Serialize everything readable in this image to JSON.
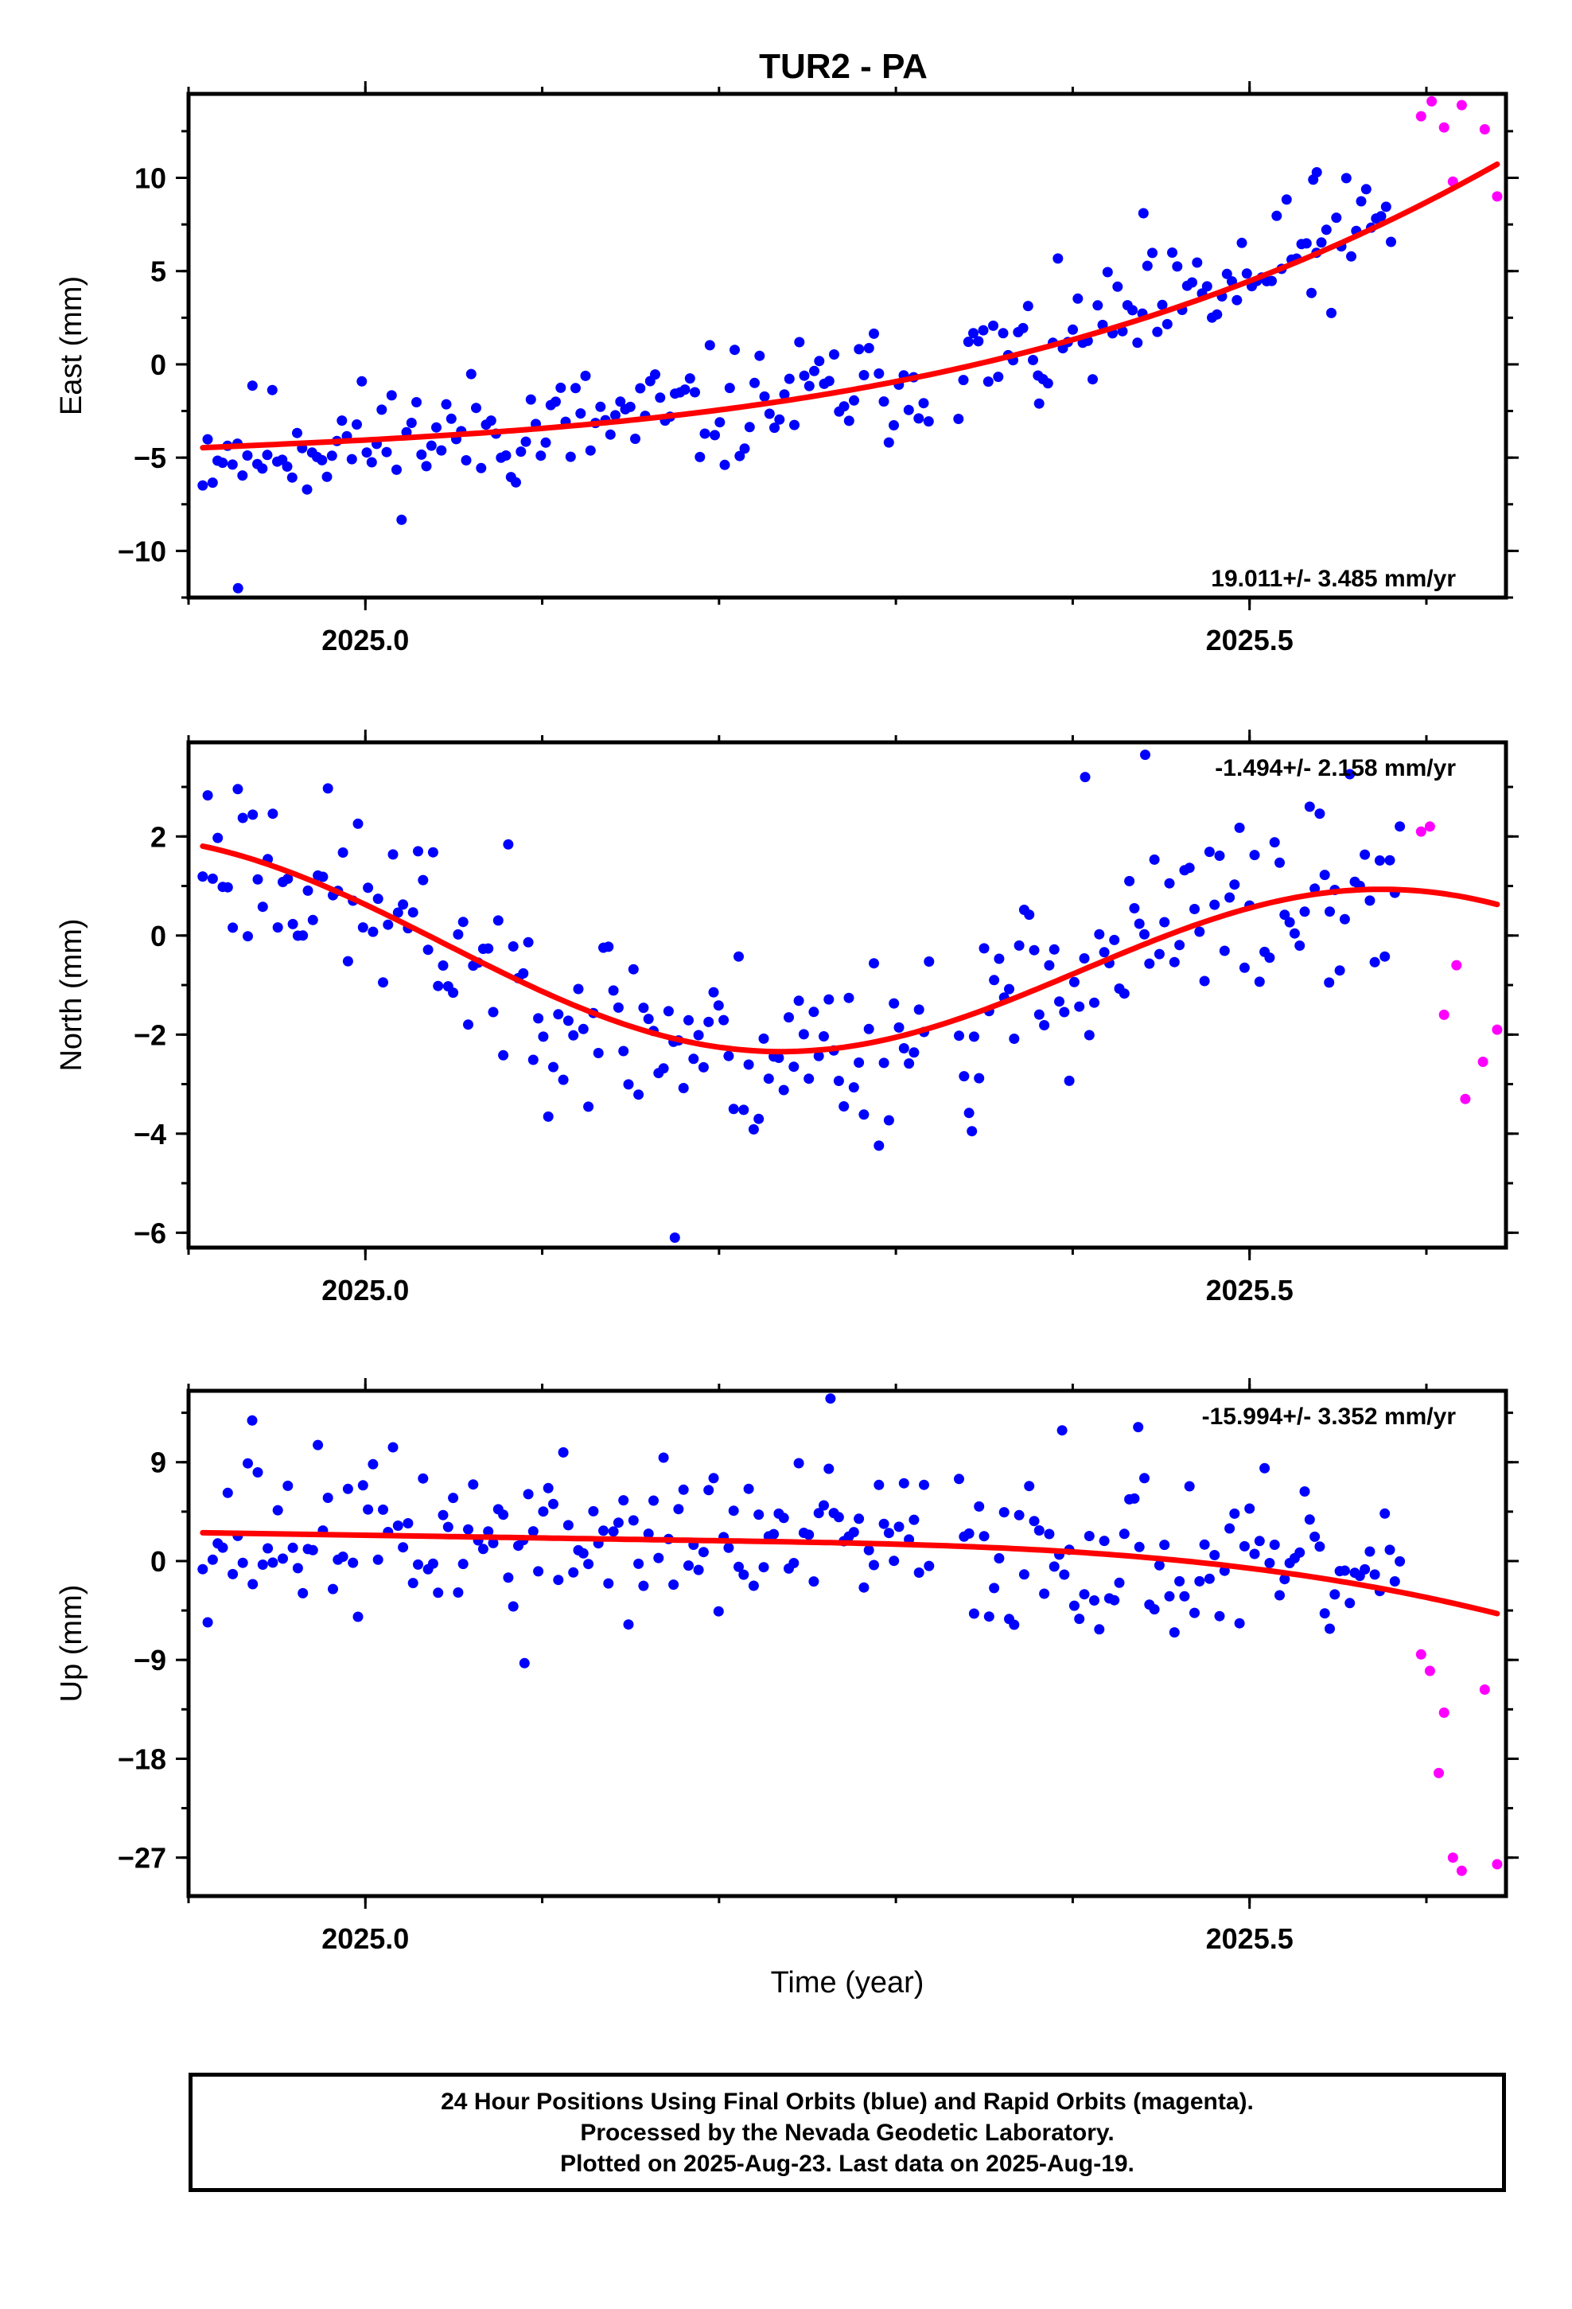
{
  "colors": {
    "final": "#0000ff",
    "rapid": "#ff00ff",
    "fit": "#ff0000",
    "axis": "#000000"
  },
  "chart_data": {
    "type": "scatter",
    "title": "TUR2 - PA",
    "xlabel": "Time (year)",
    "xlim": [
      2024.9,
      2025.645
    ],
    "xticks": [
      2025.0,
      2025.5
    ],
    "xtick_labels": [
      "2025.0",
      "2025.5"
    ],
    "x_minor_step": 0.1,
    "series_legend": [
      {
        "name": "Final Orbits",
        "color": "blue"
      },
      {
        "name": "Rapid Orbits",
        "color": "magenta"
      },
      {
        "name": "fit",
        "color": "red"
      }
    ],
    "panels": [
      {
        "id": "east",
        "ylabel": "East (mm)",
        "ylim": [
          -12.5,
          14.5
        ],
        "yticks": [
          -10,
          -5,
          0,
          5,
          10
        ],
        "ytick_labels": [
          "−10",
          "−5",
          "0",
          "5",
          "10"
        ],
        "y_minor_step": 2.5,
        "rate": "19.011+/- 3.485 mm/yr",
        "rate_position": "bottom-right",
        "fit": {
          "type": "cubic",
          "y0": -4.5,
          "slope": 4.15,
          "c2": 0,
          "c3": 30,
          "cut": 0
        },
        "final": {
          "t0": 2024.908,
          "t1": 2025.58,
          "n": 240,
          "amp": 1.6,
          "seed": 11
        },
        "final_extra": [
          [
            2024.928,
            -12
          ],
          [
            2025.381,
            -2.1
          ],
          [
            2025.44,
            8.1
          ],
          [
            2025.536,
            9.9
          ],
          [
            2025.538,
            10.3
          ]
        ],
        "rapid": [
          [
            2025.597,
            13.3
          ],
          [
            2025.603,
            14.1
          ],
          [
            2025.61,
            12.7
          ],
          [
            2025.615,
            9.8
          ],
          [
            2025.62,
            13.9
          ],
          [
            2025.633,
            12.6
          ],
          [
            2025.64,
            9.0
          ]
        ]
      },
      {
        "id": "north",
        "ylabel": "North (mm)",
        "ylim": [
          -6.3,
          3.9
        ],
        "yticks": [
          -6,
          -4,
          -2,
          0,
          2
        ],
        "ytick_labels": [
          "−6",
          "−4",
          "−2",
          "0",
          "2"
        ],
        "y_minor_step": 1,
        "rate": "-1.494+/- 2.158 mm/yr",
        "rate_position": "top-right",
        "fit": {
          "type": "sine",
          "base": -0.1,
          "trend": -1.494,
          "amp": 1.9,
          "period": 0.72,
          "phase": 2.75,
          "ref": 2025.0
        },
        "final": {
          "t0": 2024.908,
          "t1": 2025.585,
          "n": 240,
          "amp": 0.95,
          "seed": 23
        },
        "final_extra": [
          [
            2025.175,
            -6.1
          ],
          [
            2025.343,
            -3.95
          ],
          [
            2025.407,
            3.2
          ],
          [
            2025.441,
            3.65
          ],
          [
            2025.545,
            -0.95
          ]
        ],
        "rapid": [
          [
            2025.597,
            2.1
          ],
          [
            2025.602,
            2.2
          ],
          [
            2025.61,
            -1.6
          ],
          [
            2025.617,
            -0.6
          ],
          [
            2025.622,
            -3.3
          ],
          [
            2025.632,
            -2.55
          ],
          [
            2025.64,
            -1.9
          ]
        ]
      },
      {
        "id": "up",
        "ylabel": "Up (mm)",
        "ylim": [
          -30.5,
          15.5
        ],
        "yticks": [
          -27,
          -18,
          -9,
          0,
          9
        ],
        "ytick_labels": [
          "−27",
          "−18",
          "−9",
          "0",
          "9"
        ],
        "y_minor_step": 4.5,
        "rate": "-15.994+/- 3.352 mm/yr",
        "rate_position": "top-right",
        "fit": {
          "type": "cubic",
          "y0": 2.6,
          "slope": -2.5,
          "c2": 0,
          "c3": -65,
          "cut": 0.3
        },
        "final": {
          "t0": 2024.908,
          "t1": 2025.585,
          "n": 240,
          "amp": 3.6,
          "seed": 37
        },
        "final_extra": [
          [
            2024.936,
            12.8
          ],
          [
            2025.263,
            14.8
          ],
          [
            2025.394,
            11.9
          ],
          [
            2025.437,
            12.2
          ],
          [
            2025.09,
            -9.3
          ]
        ],
        "rapid": [
          [
            2025.597,
            -8.5
          ],
          [
            2025.602,
            -10.0
          ],
          [
            2025.607,
            -19.3
          ],
          [
            2025.61,
            -13.8
          ],
          [
            2025.615,
            -27.0
          ],
          [
            2025.62,
            -28.2
          ],
          [
            2025.633,
            -11.7
          ],
          [
            2025.64,
            -27.6
          ]
        ]
      }
    ]
  },
  "footer": {
    "line1": "24 Hour Positions Using Final Orbits (blue) and Rapid Orbits (magenta).",
    "line2": "Processed by the Nevada Geodetic Laboratory.",
    "line3": "Plotted on 2025-Aug-23. Last data on 2025-Aug-19."
  }
}
